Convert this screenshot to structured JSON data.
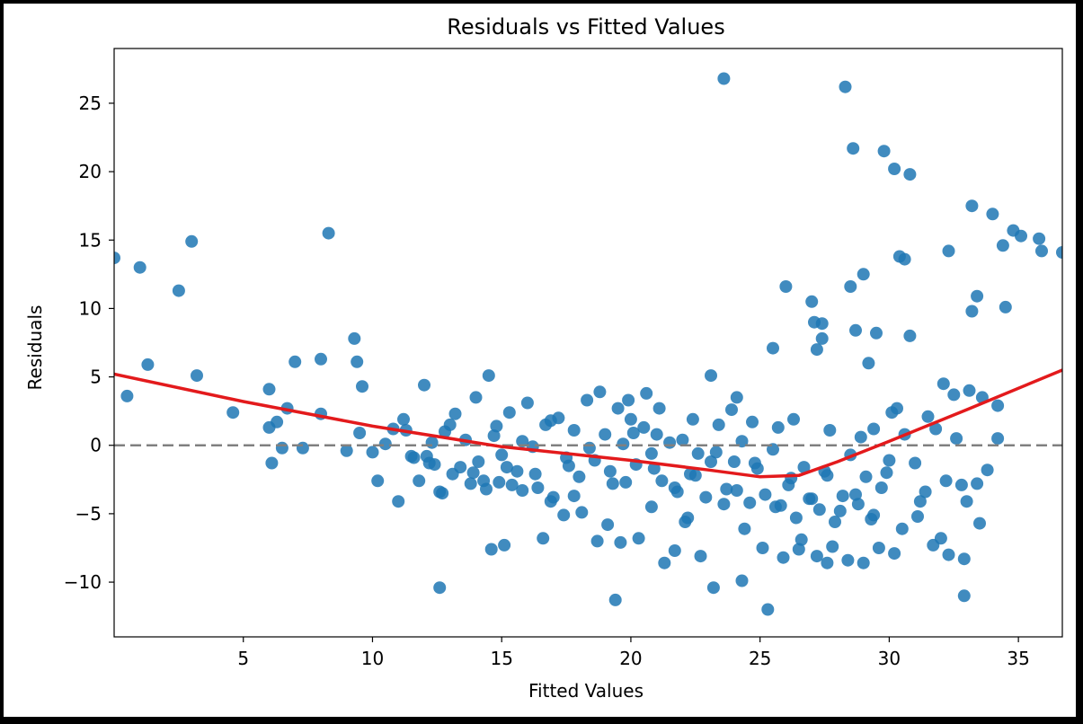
{
  "chart_data": {
    "type": "scatter",
    "title": "Residuals vs Fitted Values",
    "xlabel": "Fitted Values",
    "ylabel": "Residuals",
    "xlim": [
      0,
      36.7
    ],
    "ylim": [
      -14,
      29
    ],
    "xticks": [
      5,
      10,
      15,
      20,
      25,
      30,
      35
    ],
    "yticks": [
      -10,
      -5,
      0,
      5,
      10,
      15,
      20,
      25
    ],
    "grid": false,
    "legend": "none",
    "colors": {
      "points": "#1f77b4",
      "trend": "#e31a1c",
      "zero_line": "#808080"
    },
    "reference_line": {
      "y": 0,
      "style": "dashed"
    },
    "trend_line": {
      "x": [
        0,
        5,
        10,
        15,
        20,
        23,
        25,
        26.5,
        28,
        30,
        33,
        36.7
      ],
      "y": [
        5.2,
        3.2,
        1.4,
        -0.1,
        -1.1,
        -1.8,
        -2.3,
        -2.2,
        -1.2,
        0.3,
        2.6,
        5.5
      ]
    },
    "series": [
      {
        "x": [
          0,
          1,
          1.3,
          2.5,
          3,
          3.2,
          4.6,
          6,
          6.3,
          7,
          8,
          8.3,
          9.3,
          9.4,
          9.6,
          10,
          0.5,
          6,
          6.1,
          6.5,
          6.7,
          7.3,
          8,
          9,
          9.5,
          10.2,
          10.8,
          11,
          11.2,
          11.6,
          12,
          12.3,
          12.8,
          13,
          13.4,
          13.6,
          14,
          14.3,
          14.5,
          14.8,
          15,
          15.3,
          15.6,
          15.8,
          16,
          16.3,
          16.7,
          17,
          17.2,
          17.5,
          17.8,
          18,
          18.3,
          18.6,
          19,
          19.2,
          19.5,
          19.7,
          20,
          20.2,
          20.5,
          20.8,
          21,
          21.2,
          21.5,
          21.8,
          22,
          22.3,
          22.6,
          22.9,
          23.1,
          23.4,
          23.7,
          24,
          24.3,
          24.6,
          24.9,
          25.2,
          25.5,
          25.8,
          26.1,
          26.4,
          26.7,
          27,
          27.3,
          27.6,
          27.9,
          28.2,
          28.5,
          28.8,
          29.1,
          29.4,
          29.7,
          30,
          30.3,
          30.6,
          31,
          31.4,
          31.8,
          32.2,
          32.6,
          33,
          33.4,
          33.8,
          34.2,
          11.3,
          12.1,
          12.6,
          13.2,
          14.1,
          14.7,
          15.4,
          16.2,
          16.9,
          17.6,
          18.4,
          19.3,
          20.1,
          20.9,
          21.7,
          22.5,
          23.3,
          24.1,
          24.8,
          25.6,
          26.2,
          26.9,
          27.5,
          28.1,
          28.7,
          29.3,
          29.9,
          30.5,
          31.2,
          32,
          32.8,
          33.5,
          12.7,
          14.6,
          15.1,
          16.6,
          17.4,
          18.7,
          19.6,
          21.3,
          22.1,
          23.6,
          24.4,
          25.1,
          25.9,
          26.6,
          27.2,
          27.8,
          28.4,
          29,
          29.6,
          30.2,
          31.1,
          31.7,
          32.3,
          32.9,
          23.2,
          23.6,
          28.3,
          28.6,
          29.8,
          30.2,
          30.8,
          33.2,
          34,
          34.4,
          34.8,
          35.1,
          35.8,
          35.9,
          36.7,
          27.2,
          29,
          30.4,
          30.6,
          32.3,
          33.2,
          33.4,
          34.5,
          26,
          25.5,
          27,
          27.1,
          29.5,
          27.4,
          28.7,
          29.2,
          30.8,
          32.1,
          33.6,
          34.2,
          27.4,
          28.5,
          24.1,
          23.1,
          32.9,
          19.4,
          12.6,
          27.6,
          26.5,
          25.3,
          24.3,
          22.7,
          21.7,
          20.3,
          19.1,
          18.1,
          16.9,
          15.8,
          14.9,
          13.9,
          12.4,
          11.5,
          10.5,
          18.8,
          19.9,
          20.6,
          21.1,
          22.4,
          23.9,
          24.7,
          25.7,
          26.3,
          27.7,
          28.9,
          29.4,
          30.1,
          31.5,
          32.5,
          33.1,
          22.2,
          20.8,
          19.8,
          17.8,
          16.4,
          15.2,
          14.4,
          13.8,
          13.1,
          12.2,
          11.8
        ],
        "y": [
          13.7,
          13,
          5.9,
          11.3,
          14.9,
          5.1,
          2.4,
          4.1,
          1.7,
          6.1,
          6.3,
          15.5,
          7.8,
          6.1,
          4.3,
          -0.5,
          3.6,
          1.3,
          -1.3,
          -0.2,
          2.7,
          -0.2,
          2.3,
          -0.4,
          0.9,
          -2.6,
          1.2,
          -4.1,
          1.9,
          -0.9,
          4.4,
          0.2,
          1,
          1.5,
          -1.6,
          0.4,
          3.5,
          -2.6,
          5.1,
          1.4,
          -0.7,
          2.4,
          -1.9,
          0.3,
          3.1,
          -2.1,
          1.5,
          -3.8,
          2,
          -0.9,
          1.1,
          -2.3,
          3.3,
          -1.1,
          0.8,
          -1.9,
          2.7,
          0.1,
          1.9,
          -1.4,
          1.3,
          -0.6,
          0.8,
          -2.6,
          0.2,
          -3.4,
          0.4,
          -2.1,
          -0.6,
          -3.8,
          -1.2,
          1.5,
          -3.2,
          -1.2,
          0.3,
          -4.2,
          -1.7,
          -3.6,
          -0.3,
          -4.4,
          -2.9,
          -5.3,
          -1.6,
          -3.9,
          -4.7,
          -2.2,
          -5.6,
          -3.7,
          -0.7,
          -4.3,
          -2.3,
          -5.1,
          -3.1,
          -1.1,
          2.7,
          0.8,
          -1.3,
          -3.4,
          1.2,
          -2.6,
          0.5,
          -4.1,
          -2.8,
          -1.8,
          0.5,
          1.1,
          -0.8,
          -3.4,
          2.3,
          -1.2,
          0.7,
          -2.9,
          -0.1,
          1.8,
          -1.5,
          -0.2,
          -2.8,
          0.9,
          -1.7,
          -3.1,
          -2.2,
          -0.5,
          -3.3,
          -1.3,
          -4.5,
          -2.4,
          -3.9,
          -1.9,
          -4.8,
          -3.6,
          -5.4,
          -2,
          -6.1,
          -4.1,
          -6.8,
          -2.9,
          -5.7,
          -3.5,
          -7.6,
          -7.3,
          -6.8,
          -5.1,
          -7,
          -7.1,
          -8.6,
          -5.6,
          -4.3,
          -6.1,
          -7.5,
          -8.2,
          -6.9,
          -8.1,
          -7.4,
          -8.4,
          -8.6,
          -7.5,
          -7.9,
          -5.2,
          -7.3,
          -8,
          -8.3,
          -10.4,
          26.8,
          26.2,
          21.7,
          21.5,
          20.2,
          19.8,
          17.5,
          16.9,
          14.6,
          15.7,
          15.3,
          15.1,
          14.2,
          14.1,
          7,
          12.5,
          13.8,
          13.6,
          14.2,
          9.8,
          10.9,
          10.1,
          11.6,
          7.1,
          10.5,
          9,
          8.2,
          8.9,
          8.4,
          6,
          8,
          4.5,
          3.5,
          2.9,
          7.8,
          11.6,
          3.5,
          5.1,
          -11,
          -11.3,
          -10.4,
          -8.6,
          -7.6,
          -12,
          -9.9,
          -8.1,
          -7.7,
          -6.8,
          -5.8,
          -4.9,
          -4.1,
          -3.3,
          -2.7,
          -2,
          -1.4,
          -0.8,
          0.1,
          3.9,
          3.3,
          3.8,
          2.7,
          1.9,
          2.6,
          1.7,
          1.3,
          1.9,
          1.1,
          0.6,
          1.2,
          2.4,
          2.1,
          3.7,
          4,
          -5.3,
          -4.5,
          -2.7,
          -3.7,
          -3.1,
          -1.6,
          -3.2,
          -2.8,
          -2.1,
          -1.3,
          -2.6
        ]
      }
    ]
  }
}
